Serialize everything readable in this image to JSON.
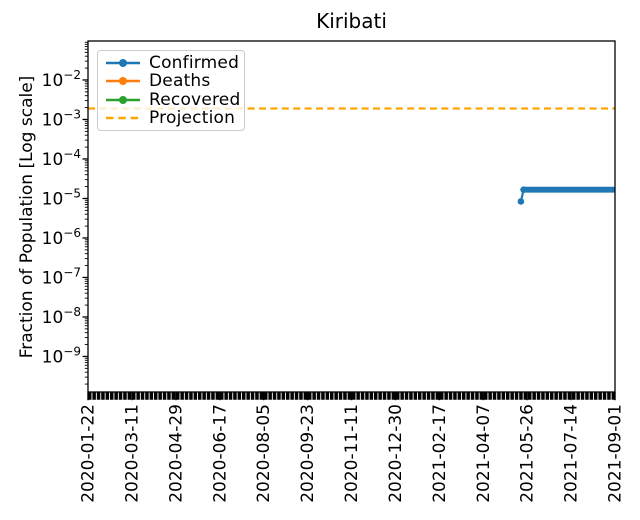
{
  "chart_data": {
    "type": "line",
    "title": "Kiribati",
    "ylabel": "Fraction of Population [Log scale]",
    "xlabel": "",
    "y_scale": "log",
    "ylim": [
      1.26e-10,
      0.097
    ],
    "y_tick_exponents": [
      -2,
      -3,
      -4,
      -5,
      -6,
      -7,
      -8,
      -9
    ],
    "x_tick_labels": [
      "2020-01-22",
      "2020-03-11",
      "2020-04-29",
      "2020-06-17",
      "2020-08-05",
      "2020-09-23",
      "2020-11-11",
      "2020-12-30",
      "2021-02-17",
      "2021-04-07",
      "2021-05-26",
      "2021-07-14",
      "2021-09-01"
    ],
    "x_range_days": [
      0,
      588
    ],
    "x_tick_interval_days": 49,
    "grid": false,
    "legend_position": "upper-left",
    "series": [
      {
        "name": "Confirmed",
        "color": "#1f77b4",
        "line": "solid",
        "marker": true,
        "points": [
          {
            "date": "2021-05-19",
            "day": 483,
            "value": 8.4e-06
          },
          {
            "date": "2021-05-22",
            "day": 486,
            "value": 1.67e-05
          },
          {
            "date": "2021-09-01",
            "day": 588,
            "value": 1.67e-05
          }
        ]
      },
      {
        "name": "Deaths",
        "color": "#ff7f0e",
        "line": "solid",
        "marker": true,
        "points": []
      },
      {
        "name": "Recovered",
        "color": "#2ca02c",
        "line": "solid",
        "marker": true,
        "points": []
      },
      {
        "name": "Projection",
        "color": "#ffa500",
        "line": "dashed",
        "marker": false,
        "points": [
          {
            "date": "2020-01-22",
            "day": 0,
            "value": 0.0019
          },
          {
            "date": "2021-09-01",
            "day": 588,
            "value": 0.0019
          }
        ]
      }
    ]
  }
}
